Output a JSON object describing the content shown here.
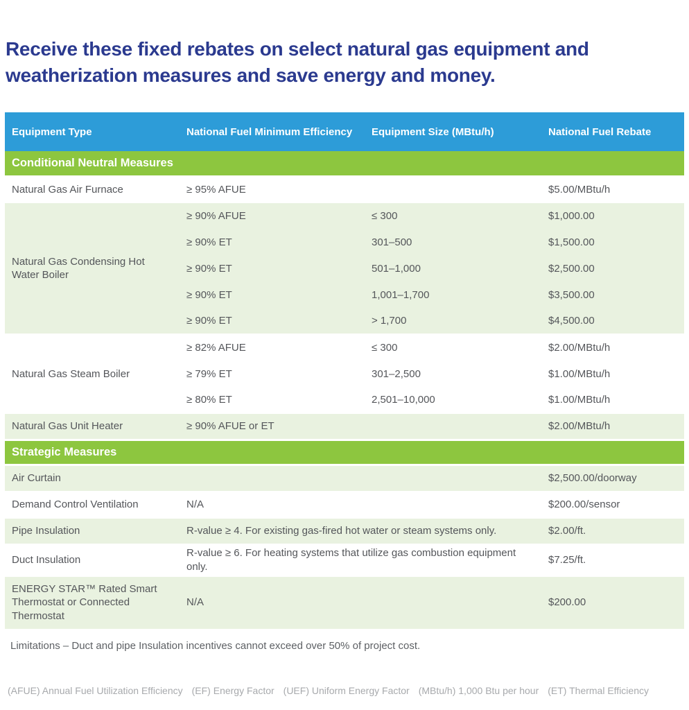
{
  "title": "Receive these fixed rebates on select natural gas equipment and weatherization measures and save energy and money.",
  "colors": {
    "header_blue": "#2d9cd8",
    "section_green": "#8dc63f",
    "row_light_green": "#e9f2e0",
    "title_navy": "#2b3a8f",
    "body_text_gray": "#54565a",
    "footnote_gray": "#a7a9ac"
  },
  "table": {
    "columns": [
      "Equipment Type",
      "National Fuel Minimum Efficiency",
      "Equipment Size (MBtu/h)",
      "National Fuel Rebate"
    ],
    "sections": [
      {
        "name": "Conditional Neutral Measures",
        "groups": [
          {
            "equipment": "Natural Gas Air Furnace",
            "shade": "white",
            "rows": [
              {
                "efficiency": "≥ 95% AFUE",
                "size": "",
                "rebate": "$5.00/MBtu/h"
              }
            ]
          },
          {
            "equipment": "Natural Gas Condensing Hot Water Boiler",
            "shade": "green",
            "rows": [
              {
                "efficiency": "≥ 90% AFUE",
                "size": "≤ 300",
                "rebate": "$1,000.00"
              },
              {
                "efficiency": "≥ 90% ET",
                "size": "301–500",
                "rebate": "$1,500.00"
              },
              {
                "efficiency": "≥ 90% ET",
                "size": "501–1,000",
                "rebate": "$2,500.00"
              },
              {
                "efficiency": "≥ 90% ET",
                "size": "1,001–1,700",
                "rebate": "$3,500.00"
              },
              {
                "efficiency": "≥ 90% ET",
                "size": "> 1,700",
                "rebate": "$4,500.00"
              }
            ]
          },
          {
            "equipment": "Natural Gas Steam Boiler",
            "shade": "white",
            "rows": [
              {
                "efficiency": "≥ 82% AFUE",
                "size": "≤ 300",
                "rebate": "$2.00/MBtu/h"
              },
              {
                "efficiency": "≥ 79% ET",
                "size": "301–2,500",
                "rebate": "$1.00/MBtu/h"
              },
              {
                "efficiency": "≥ 80% ET",
                "size": "2,501–10,000",
                "rebate": "$1.00/MBtu/h"
              }
            ]
          },
          {
            "equipment": "Natural Gas Unit Heater",
            "shade": "green",
            "rows": [
              {
                "efficiency": "≥ 90% AFUE or ET",
                "size": "",
                "rebate": "$2.00/MBtu/h"
              }
            ]
          }
        ]
      },
      {
        "name": "Strategic Measures",
        "groups": [
          {
            "equipment": "Air Curtain",
            "shade": "green",
            "rows": [
              {
                "efficiency": "",
                "size": "",
                "rebate": "$2,500.00/doorway"
              }
            ]
          },
          {
            "equipment": "Demand Control Ventilation",
            "shade": "white",
            "rows": [
              {
                "efficiency": "N/A",
                "size": "",
                "rebate": "$200.00/sensor"
              }
            ]
          },
          {
            "equipment": "Pipe Insulation",
            "shade": "green",
            "rows": [
              {
                "efficiency": "R-value ≥ 4. For existing gas-fired hot water or steam systems only.",
                "size": null,
                "rebate": "$2.00/ft."
              }
            ]
          },
          {
            "equipment": "Duct Insulation",
            "shade": "white",
            "rows": [
              {
                "efficiency": "R-value ≥ 6. For heating systems that utilize gas combustion equipment only.",
                "size": null,
                "rebate": "$7.25/ft."
              }
            ]
          },
          {
            "equipment": "ENERGY STAR™ Rated Smart Thermostat or Connected Thermostat",
            "shade": "green",
            "rows": [
              {
                "efficiency": "N/A",
                "size": "",
                "rebate": "$200.00"
              }
            ]
          }
        ]
      }
    ]
  },
  "limitations": "Limitations – Duct and pipe Insulation incentives cannot exceed over 50% of project cost.",
  "footnotes": [
    "(AFUE) Annual Fuel Utilization Efficiency",
    "(EF) Energy Factor",
    "(UEF) Uniform Energy Factor",
    "(MBtu/h) 1,000 Btu per hour",
    "(ET) Thermal Efficiency"
  ]
}
